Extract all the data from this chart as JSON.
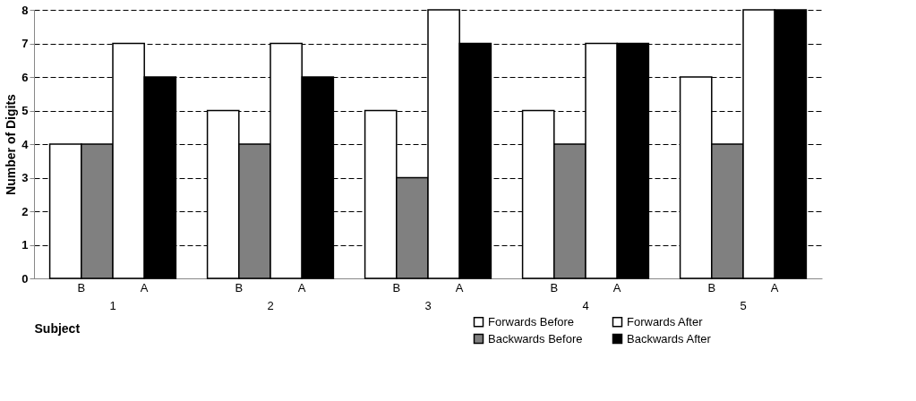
{
  "chart_data": {
    "type": "bar",
    "xlabel": "Subject",
    "ylabel": "Number of Digits",
    "categories": [
      "1",
      "2",
      "3",
      "4",
      "5"
    ],
    "series": [
      {
        "name": "Forwards Before",
        "color": "#ffffff",
        "values": [
          4,
          5,
          5,
          5,
          6
        ]
      },
      {
        "name": "Backwards Before",
        "color": "#808080",
        "values": [
          4,
          4,
          3,
          4,
          4
        ]
      },
      {
        "name": "Forwards After",
        "color": "#ffffff",
        "values": [
          7,
          7,
          8,
          7,
          8
        ]
      },
      {
        "name": "Backwards After",
        "color": "#000000",
        "values": [
          6,
          6,
          7,
          7,
          8
        ]
      }
    ],
    "annotations": [
      "B",
      "A"
    ],
    "ylim": [
      0,
      8
    ],
    "yticks": [
      0,
      1,
      2,
      3,
      4,
      5,
      6,
      7,
      8
    ],
    "grid": "y",
    "legend": "bottom right"
  }
}
